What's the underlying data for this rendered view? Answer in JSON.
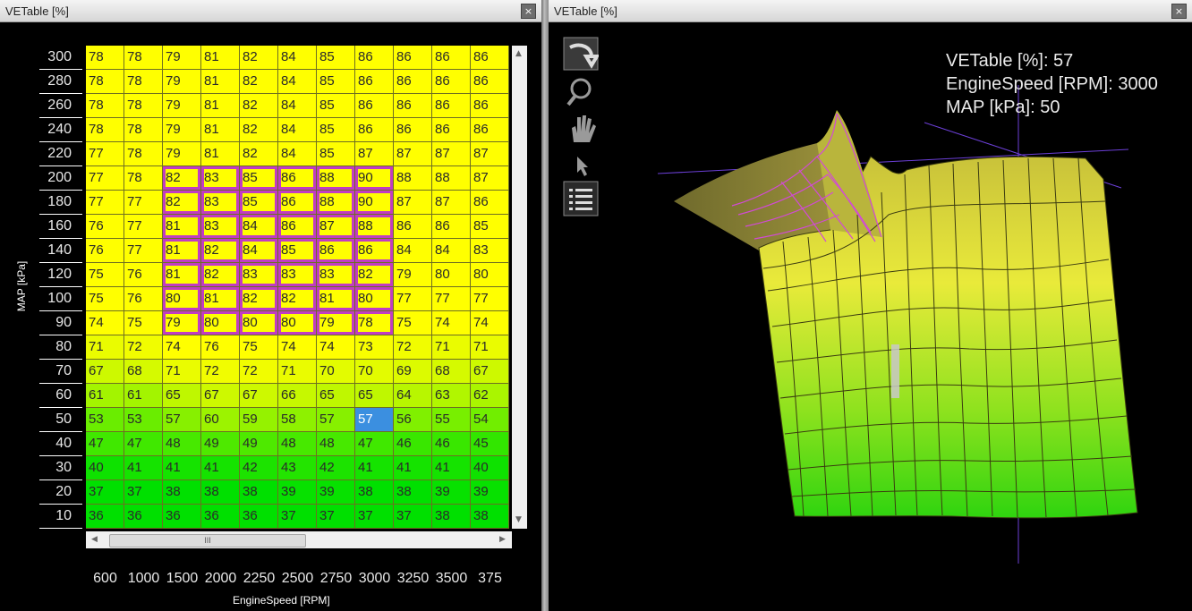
{
  "left_window": {
    "title": "VETable [%]",
    "close_label": "×",
    "y_axis_title": "MAP [kPa]",
    "x_axis_title": "EngineSpeed [RPM]",
    "map_rows": [
      "300",
      "280",
      "260",
      "240",
      "220",
      "200",
      "180",
      "160",
      "140",
      "120",
      "100",
      "90",
      "80",
      "70",
      "60",
      "50",
      "40",
      "30",
      "20",
      "10"
    ],
    "rpm_columns": [
      "600",
      "1000",
      "1500",
      "2000",
      "2250",
      "2500",
      "2750",
      "3000",
      "3250",
      "3500",
      "375"
    ],
    "table": [
      [
        "78",
        "78",
        "79",
        "81",
        "82",
        "84",
        "85",
        "86",
        "86",
        "86",
        "86"
      ],
      [
        "78",
        "78",
        "79",
        "81",
        "82",
        "84",
        "85",
        "86",
        "86",
        "86",
        "86"
      ],
      [
        "78",
        "78",
        "79",
        "81",
        "82",
        "84",
        "85",
        "86",
        "86",
        "86",
        "86"
      ],
      [
        "78",
        "78",
        "79",
        "81",
        "82",
        "84",
        "85",
        "86",
        "86",
        "86",
        "86"
      ],
      [
        "77",
        "78",
        "79",
        "81",
        "82",
        "84",
        "85",
        "87",
        "87",
        "87",
        "87"
      ],
      [
        "77",
        "78",
        "82",
        "83",
        "85",
        "86",
        "88",
        "90",
        "88",
        "88",
        "87"
      ],
      [
        "77",
        "77",
        "82",
        "83",
        "85",
        "86",
        "88",
        "90",
        "87",
        "87",
        "86"
      ],
      [
        "76",
        "77",
        "81",
        "83",
        "84",
        "86",
        "87",
        "88",
        "86",
        "86",
        "85"
      ],
      [
        "76",
        "77",
        "81",
        "82",
        "84",
        "85",
        "86",
        "86",
        "84",
        "84",
        "83"
      ],
      [
        "75",
        "76",
        "81",
        "82",
        "83",
        "83",
        "83",
        "82",
        "79",
        "80",
        "80"
      ],
      [
        "75",
        "76",
        "80",
        "81",
        "82",
        "82",
        "81",
        "80",
        "77",
        "77",
        "77"
      ],
      [
        "74",
        "75",
        "79",
        "80",
        "80",
        "80",
        "79",
        "78",
        "75",
        "74",
        "74"
      ],
      [
        "71",
        "72",
        "74",
        "76",
        "75",
        "74",
        "74",
        "73",
        "72",
        "71",
        "71"
      ],
      [
        "67",
        "68",
        "71",
        "72",
        "72",
        "71",
        "70",
        "70",
        "69",
        "68",
        "67"
      ],
      [
        "61",
        "61",
        "65",
        "67",
        "67",
        "66",
        "65",
        "65",
        "64",
        "63",
        "62"
      ],
      [
        "53",
        "53",
        "57",
        "60",
        "59",
        "58",
        "57",
        "57",
        "56",
        "55",
        "54"
      ],
      [
        "47",
        "47",
        "48",
        "49",
        "49",
        "48",
        "48",
        "47",
        "46",
        "46",
        "45"
      ],
      [
        "40",
        "41",
        "41",
        "41",
        "42",
        "43",
        "42",
        "41",
        "41",
        "41",
        "40"
      ],
      [
        "37",
        "37",
        "38",
        "38",
        "38",
        "39",
        "39",
        "38",
        "38",
        "39",
        "39"
      ],
      [
        "36",
        "36",
        "36",
        "36",
        "36",
        "37",
        "37",
        "37",
        "37",
        "38",
        "38"
      ]
    ],
    "selection": {
      "row_from": 5,
      "row_to": 11,
      "col_from": 2,
      "col_to": 7
    },
    "active_cell": {
      "row": 15,
      "col": 7
    },
    "scroll_thumb_label": "III"
  },
  "right_window": {
    "title": "VETable [%]",
    "close_label": "×",
    "tools": [
      "rotate-icon",
      "zoom-icon",
      "pan-hand-icon",
      "pointer-icon",
      "list-icon"
    ],
    "readout": {
      "line1": "VETable [%]: 57",
      "line2": "EngineSpeed [RPM]: 3000",
      "line3": "MAP [kPa]: 50"
    }
  },
  "colors": {
    "high": "#ffff00",
    "low": "#00e000",
    "selection": "#c13cc3",
    "active": "#3b8fe0"
  }
}
